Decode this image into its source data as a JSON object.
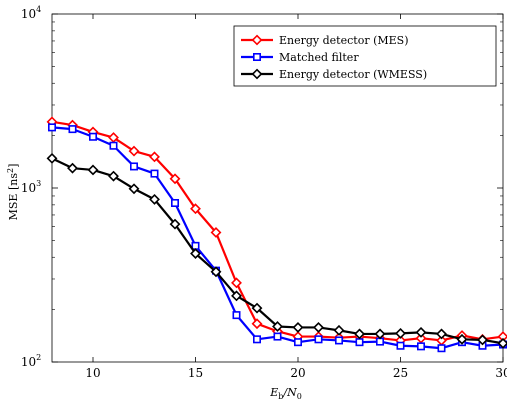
{
  "chart_data": {
    "type": "line",
    "title": "",
    "xlabel": "",
    "ylabel_text": "MSE [ns",
    "ylabel_sup": "2",
    "ylabel_close": "]",
    "xlabel_e": "E",
    "xlabel_b": "b",
    "xlabel_slash": "/N",
    "xlabel_0": "0",
    "xlim": [
      8,
      30
    ],
    "ylim": [
      100,
      10000
    ],
    "yscale": "log",
    "grid": false,
    "legend_position": "top-right",
    "x_ticks": [
      {
        "value": 10,
        "label": "10"
      },
      {
        "value": 15,
        "label": "15"
      },
      {
        "value": 20,
        "label": "20"
      },
      {
        "value": 25,
        "label": "25"
      },
      {
        "value": 30,
        "label": "30"
      }
    ],
    "y_ticks": [
      {
        "value": 100,
        "base": "10",
        "exp": "2"
      },
      {
        "value": 1000,
        "base": "10",
        "exp": "3"
      },
      {
        "value": 10000,
        "base": "10",
        "exp": "4"
      }
    ],
    "x": [
      8,
      9,
      10,
      11,
      12,
      13,
      14,
      15,
      16,
      17,
      18,
      19,
      20,
      21,
      22,
      23,
      24,
      25,
      26,
      27,
      28,
      29,
      30
    ],
    "series": [
      {
        "name": "Energy detector (MES)",
        "color": "#ff0000",
        "marker": "diamond",
        "values": [
          2400,
          2300,
          2100,
          1950,
          1630,
          1510,
          1130,
          760,
          555,
          285,
          166,
          150,
          140,
          140,
          138,
          140,
          137,
          133,
          137,
          133,
          142,
          135,
          140
        ]
      },
      {
        "name": "Matched filter",
        "color": "#0000ff",
        "marker": "square",
        "values": [
          2230,
          2180,
          1970,
          1750,
          1330,
          1210,
          820,
          465,
          335,
          186,
          135,
          140,
          130,
          135,
          133,
          130,
          131,
          124,
          123,
          120,
          130,
          124,
          126
        ]
      },
      {
        "name": "Energy detector (WMESS)",
        "color": "#000000",
        "marker": "diamond",
        "values": [
          1480,
          1300,
          1270,
          1170,
          990,
          860,
          620,
          420,
          330,
          240,
          204,
          160,
          158,
          158,
          152,
          145,
          145,
          146,
          148,
          145,
          135,
          134,
          128
        ]
      }
    ]
  }
}
